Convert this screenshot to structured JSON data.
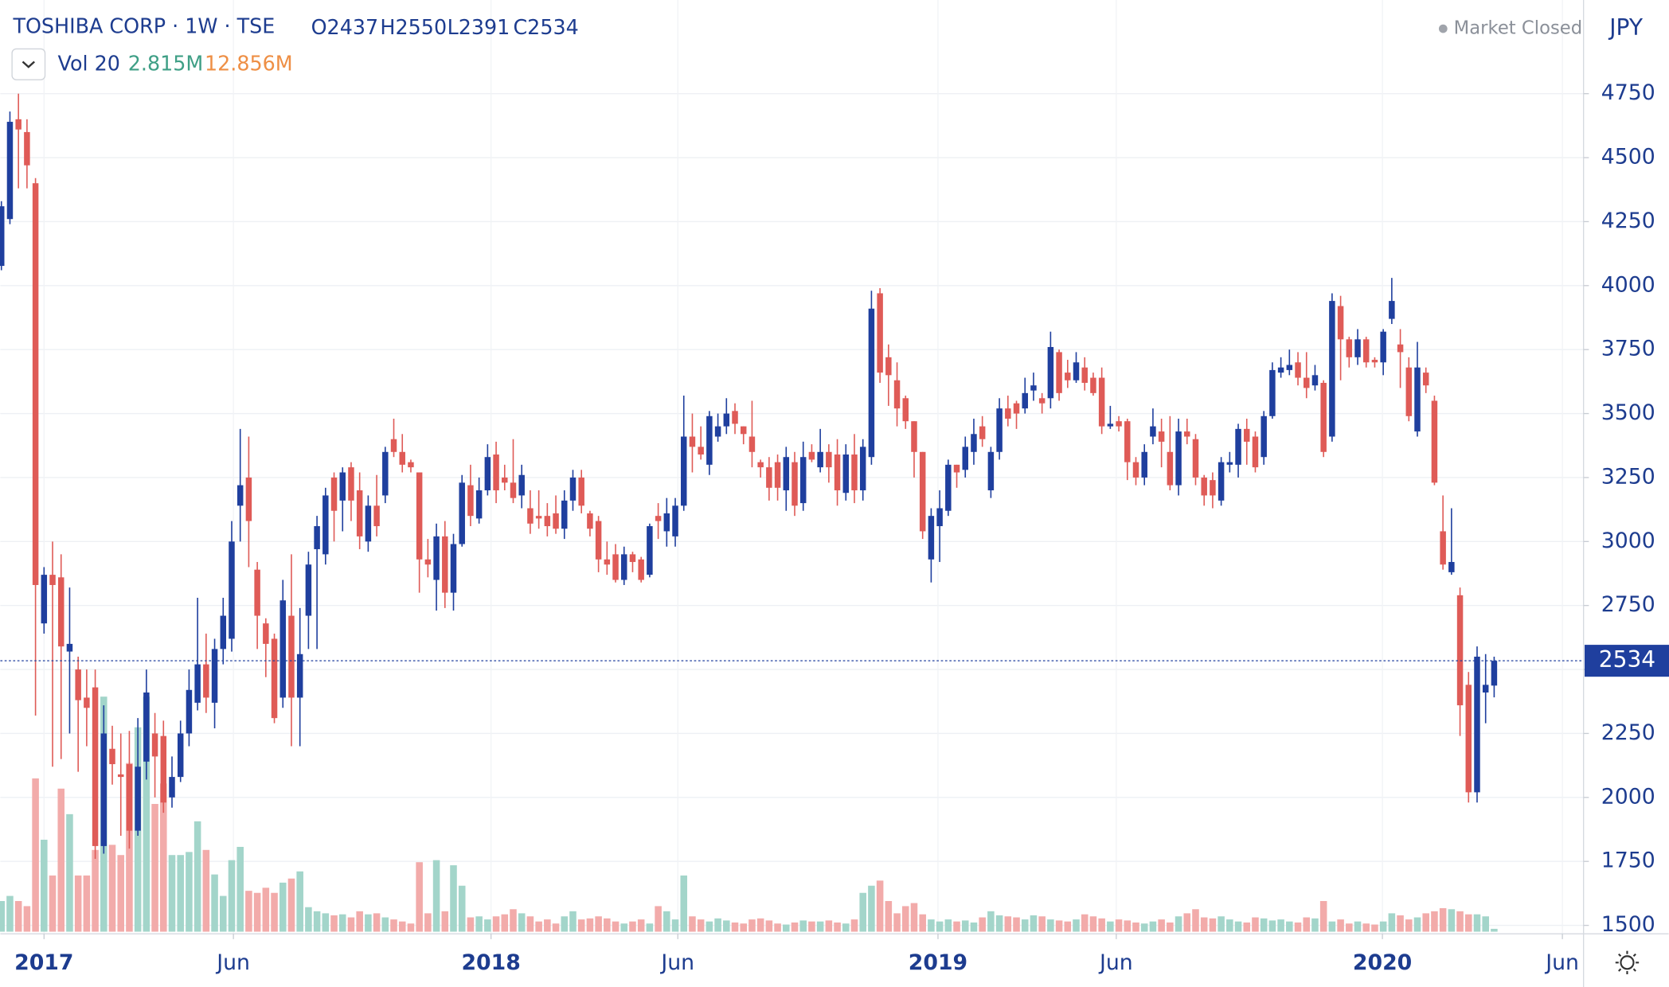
{
  "header": {
    "title": "TOSHIBA CORP · 1W · TSE",
    "ohlc": [
      "O2437",
      "H2550",
      "L2391",
      "C2534"
    ],
    "volume_indicator": "Vol 20",
    "volume_last": "2.815M",
    "volume_ma": "12.856M",
    "status": "Market Closed",
    "currency": "JPY"
  },
  "chart_data": {
    "type": "candlestick",
    "open": [
      4077,
      4260,
      4650,
      4600,
      4400,
      2680,
      2870,
      2860,
      2570,
      2500,
      2390,
      2430,
      1810,
      2190,
      2090,
      2130,
      1870,
      2140,
      2250,
      2240,
      2000,
      2080,
      2250,
      2370,
      2520,
      2370,
      2580,
      2620,
      3140,
      3250,
      2890,
      2680,
      2620,
      2390,
      2710,
      2390,
      2710,
      2970,
      2950,
      3250,
      3160,
      3290,
      3200,
      3000,
      3140,
      3180,
      3400,
      3350,
      3310,
      3270,
      2930,
      2850,
      3020,
      2800,
      2990,
      3220,
      3090,
      3200,
      3340,
      3250,
      3230,
      3180,
      3130,
      3100,
      3100,
      3110,
      3050,
      3160,
      3250,
      3110,
      3080,
      2930,
      2950,
      2850,
      2950,
      2930,
      2870,
      3100,
      3040,
      3020,
      3140,
      3410,
      3370,
      3300,
      3410,
      3450,
      3510,
      3450,
      3410,
      3310,
      3290,
      3310,
      3200,
      3310,
      3150,
      3350,
      3290,
      3350,
      3340,
      3190,
      3340,
      3200,
      3330,
      3970,
      3720,
      3630,
      3560,
      3470,
      3350,
      2930,
      3060,
      3120,
      3300,
      3280,
      3350,
      3450,
      3200,
      3350,
      3520,
      3540,
      3520,
      3590,
      3560,
      3560,
      3740,
      3660,
      3630,
      3680,
      3640,
      3640,
      3450,
      3470,
      3470,
      3310,
      3250,
      3410,
      3430,
      3350,
      3220,
      3430,
      3400,
      3250,
      3240,
      3160,
      3300,
      3300,
      3440,
      3410,
      3330,
      3490,
      3660,
      3670,
      3700,
      3640,
      3610,
      3620,
      3410,
      3920,
      3790,
      3720,
      3790,
      3710,
      3700,
      3870,
      3770,
      3680,
      3430,
      3660,
      3550,
      3040,
      2880,
      2790,
      2440,
      2020,
      2410,
      2437
    ],
    "high": [
      4330,
      4680,
      4750,
      4650,
      4420,
      2900,
      3000,
      2950,
      2820,
      2550,
      2500,
      2500,
      2360,
      2280,
      2250,
      2260,
      2310,
      2500,
      2330,
      2300,
      2160,
      2300,
      2500,
      2780,
      2640,
      2620,
      2780,
      3080,
      3440,
      3410,
      2920,
      2700,
      2640,
      2850,
      2950,
      2740,
      2960,
      3100,
      3210,
      3270,
      3290,
      3310,
      3270,
      3180,
      3260,
      3370,
      3480,
      3420,
      3320,
      3270,
      3010,
      3070,
      3080,
      3030,
      3260,
      3300,
      3250,
      3380,
      3390,
      3300,
      3400,
      3300,
      3200,
      3200,
      3150,
      3180,
      3200,
      3280,
      3280,
      3120,
      3100,
      3000,
      2990,
      2980,
      2960,
      2940,
      3070,
      3150,
      3170,
      3170,
      3570,
      3500,
      3450,
      3510,
      3500,
      3560,
      3540,
      3450,
      3550,
      3320,
      3330,
      3340,
      3370,
      3350,
      3390,
      3380,
      3440,
      3380,
      3400,
      3380,
      3420,
      3400,
      3980,
      3990,
      3770,
      3700,
      3570,
      3470,
      3350,
      3130,
      3200,
      3320,
      3300,
      3410,
      3480,
      3490,
      3370,
      3560,
      3570,
      3550,
      3640,
      3660,
      3580,
      3820,
      3750,
      3710,
      3740,
      3720,
      3660,
      3680,
      3530,
      3490,
      3480,
      3330,
      3380,
      3520,
      3480,
      3490,
      3480,
      3480,
      3420,
      3260,
      3270,
      3330,
      3350,
      3460,
      3480,
      3430,
      3510,
      3700,
      3720,
      3750,
      3740,
      3740,
      3690,
      3630,
      3970,
      3960,
      3800,
      3830,
      3800,
      3720,
      3830,
      4030,
      3830,
      3720,
      3780,
      3680,
      3570,
      3180,
      3130,
      2820,
      2490,
      2590,
      2560,
      2550
    ],
    "low": [
      4060,
      4240,
      4380,
      4380,
      2320,
      2640,
      2120,
      2150,
      2250,
      2100,
      2200,
      1760,
      1780,
      2050,
      1850,
      1800,
      1850,
      2070,
      2000,
      1940,
      1960,
      2060,
      2200,
      2340,
      2330,
      2270,
      2520,
      2570,
      3000,
      2900,
      2580,
      2470,
      2290,
      2350,
      2200,
      2200,
      2580,
      2580,
      2910,
      3000,
      3040,
      3080,
      2970,
      2960,
      3020,
      3150,
      3330,
      3270,
      3270,
      2800,
      2860,
      2730,
      2740,
      2730,
      2980,
      3060,
      3070,
      3180,
      3150,
      3200,
      3150,
      3130,
      3030,
      3050,
      3020,
      3030,
      3010,
      3120,
      3110,
      3020,
      2880,
      2870,
      2840,
      2830,
      2880,
      2840,
      2860,
      3010,
      2980,
      2980,
      3120,
      3270,
      3320,
      3260,
      3390,
      3420,
      3420,
      3380,
      3290,
      3250,
      3160,
      3160,
      3120,
      3100,
      3120,
      3310,
      3270,
      3230,
      3140,
      3160,
      3150,
      3160,
      3300,
      3620,
      3530,
      3450,
      3440,
      3250,
      3010,
      2840,
      2920,
      3100,
      3210,
      3250,
      3300,
      3370,
      3170,
      3320,
      3450,
      3440,
      3500,
      3550,
      3500,
      3520,
      3550,
      3600,
      3620,
      3590,
      3570,
      3420,
      3440,
      3430,
      3240,
      3220,
      3220,
      3380,
      3290,
      3200,
      3180,
      3380,
      3220,
      3140,
      3130,
      3140,
      3270,
      3250,
      3300,
      3270,
      3300,
      3480,
      3640,
      3650,
      3610,
      3560,
      3590,
      3330,
      3390,
      3630,
      3680,
      3690,
      3680,
      3680,
      3650,
      3850,
      3600,
      3470,
      3410,
      3580,
      3220,
      2890,
      2870,
      2240,
      1980,
      1980,
      2290,
      2391
    ],
    "close": [
      4310,
      4640,
      4610,
      4470,
      2830,
      2870,
      2830,
      2590,
      2600,
      2380,
      2350,
      1810,
      2250,
      2130,
      2080,
      1870,
      2120,
      2410,
      2160,
      1980,
      2080,
      2250,
      2420,
      2520,
      2390,
      2580,
      2710,
      3000,
      3220,
      3080,
      2710,
      2600,
      2310,
      2770,
      2390,
      2560,
      2910,
      3060,
      3180,
      3120,
      3270,
      3160,
      3020,
      3140,
      3060,
      3350,
      3350,
      3300,
      3290,
      2930,
      2910,
      3020,
      2800,
      2990,
      3230,
      3100,
      3200,
      3330,
      3200,
      3230,
      3170,
      3260,
      3070,
      3090,
      3060,
      3050,
      3160,
      3250,
      3140,
      3050,
      2930,
      2910,
      2850,
      2950,
      2920,
      2850,
      3060,
      3080,
      3110,
      3140,
      3410,
      3370,
      3340,
      3490,
      3450,
      3500,
      3460,
      3420,
      3350,
      3290,
      3210,
      3210,
      3330,
      3140,
      3330,
      3320,
      3350,
      3290,
      3200,
      3340,
      3200,
      3370,
      3910,
      3660,
      3650,
      3520,
      3470,
      3350,
      3040,
      3100,
      3130,
      3300,
      3270,
      3370,
      3420,
      3400,
      3350,
      3520,
      3480,
      3500,
      3580,
      3610,
      3540,
      3760,
      3580,
      3630,
      3700,
      3620,
      3580,
      3450,
      3460,
      3450,
      3310,
      3250,
      3350,
      3450,
      3390,
      3220,
      3430,
      3410,
      3250,
      3180,
      3180,
      3310,
      3310,
      3440,
      3390,
      3290,
      3490,
      3670,
      3680,
      3690,
      3640,
      3600,
      3650,
      3350,
      3940,
      3790,
      3720,
      3790,
      3700,
      3700,
      3820,
      3940,
      3740,
      3490,
      3680,
      3610,
      3230,
      2910,
      2920,
      2360,
      2020,
      2550,
      2440,
      2534
    ],
    "volume": [
      30,
      35,
      30,
      25,
      150,
      90,
      55,
      140,
      115,
      55,
      55,
      80,
      230,
      85,
      75,
      165,
      200,
      230,
      125,
      145,
      75,
      75,
      78,
      108,
      80,
      56,
      35,
      70,
      83,
      40,
      38,
      43,
      38,
      48,
      52,
      59,
      24,
      20,
      18,
      16,
      17,
      14,
      20,
      17,
      18,
      14,
      12,
      10,
      8,
      68,
      18,
      70,
      20,
      65,
      45,
      14,
      15,
      12,
      15,
      17,
      22,
      18,
      15,
      10,
      12,
      8,
      15,
      20,
      12,
      13,
      15,
      13,
      10,
      8,
      10,
      12,
      8,
      25,
      20,
      12,
      55,
      15,
      12,
      10,
      13,
      11,
      9,
      8,
      12,
      13,
      11,
      8,
      7,
      9,
      11,
      10,
      10,
      11,
      9,
      8,
      12,
      38,
      45,
      50,
      30,
      18,
      25,
      28,
      17,
      12,
      10,
      12,
      10,
      11,
      9,
      14,
      20,
      16,
      15,
      14,
      12,
      16,
      15,
      12,
      11,
      10,
      12,
      17,
      15,
      13,
      10,
      12,
      11,
      9,
      8,
      10,
      12,
      9,
      15,
      18,
      22,
      14,
      13,
      15,
      12,
      10,
      9,
      14,
      13,
      11,
      12,
      10,
      9,
      14,
      13,
      30,
      10,
      12,
      8,
      10,
      8,
      7,
      10,
      18,
      16,
      12,
      14,
      18,
      20,
      23,
      22,
      20,
      17,
      17,
      15,
      2.815
    ],
    "up_color": "#1f3f9e",
    "down_color": "#df5b57",
    "volume_up_color": "#a3d5ca",
    "volume_down_color": "#f2abaa",
    "ylim": [
      1467,
      5116
    ],
    "yticks": [
      1500,
      1750,
      2000,
      2250,
      2500,
      2750,
      3000,
      3250,
      3500,
      3750,
      4000,
      4250,
      4500,
      4750
    ],
    "xticks": [
      {
        "value": 5,
        "label": "2017"
      },
      {
        "value": 27.2,
        "label": "Jun"
      },
      {
        "value": 57.4,
        "label": "2018"
      },
      {
        "value": 79.3,
        "label": "Jun"
      },
      {
        "value": 109.8,
        "label": "2019"
      },
      {
        "value": 130.7,
        "label": "Jun"
      },
      {
        "value": 161.9,
        "label": "2020"
      },
      {
        "value": 183,
        "label": "Jun"
      }
    ],
    "grid": true
  }
}
